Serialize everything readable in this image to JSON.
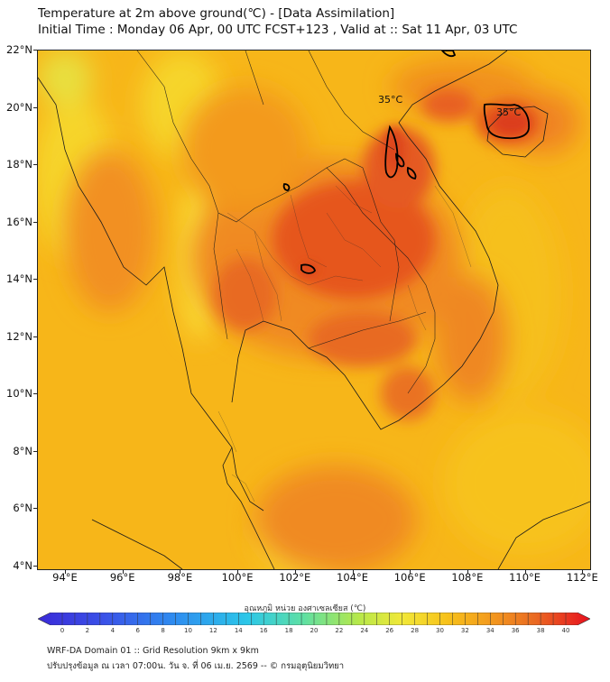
{
  "header": {
    "title_line1": "Temperature at 2m above ground(℃) - [Data Assimilation]",
    "title_line2": "Initial Time : Monday 06 Apr, 00 UTC FCST+123 , Valid at :: Sat 11 Apr, 03 UTC"
  },
  "map": {
    "lat_labels": [
      "22°N",
      "20°N",
      "18°N",
      "16°N",
      "14°N",
      "12°N",
      "10°N",
      "8°N",
      "6°N",
      "4°N"
    ],
    "lon_labels": [
      "94°E",
      "96°E",
      "98°E",
      "100°E",
      "102°E",
      "104°E",
      "106°E",
      "108°E",
      "110°E",
      "112°E"
    ],
    "contour_labels": [
      "35°C",
      "35°C"
    ],
    "colors": {
      "hot": "#e8501f",
      "warm": "#f39a1e",
      "mild": "#f7c21a",
      "cool": "#f9e23a",
      "border": "#1a1a1a"
    }
  },
  "colorbar": {
    "title": "อุณหภูมิ หน่วย องศาเซลเซียส (℃)",
    "labels": [
      "0",
      "2",
      "4",
      "6",
      "8",
      "10",
      "12",
      "14",
      "16",
      "18",
      "20",
      "22",
      "24",
      "26",
      "28",
      "30",
      "32",
      "34",
      "36",
      "38",
      "40"
    ]
  },
  "footer": {
    "line1": "WRF-DA Domain 01 :: Grid Resolution 9km x 9km",
    "line2": "ปรับปรุงข้อมูล ณ เวลา 07:00น. วัน จ. ที่ 06 เม.ย. 2569 -- © กรมอุตุนิยมวิทยา"
  }
}
